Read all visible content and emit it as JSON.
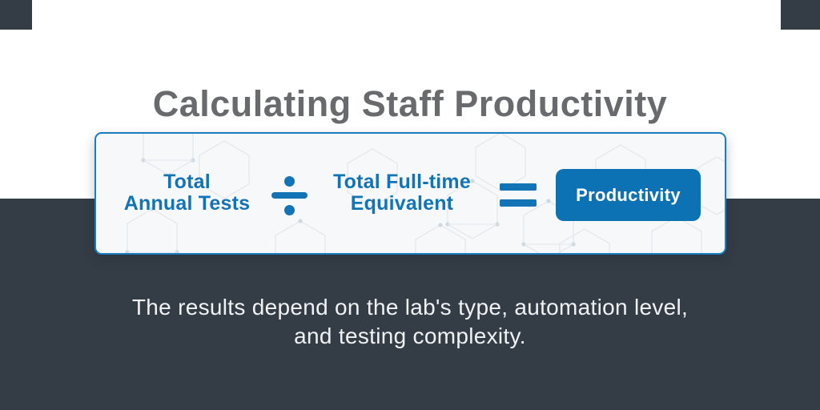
{
  "page": {
    "title": "Calculating Staff Productivity",
    "subtitle_line1": "The results depend on the lab's type, automation level,",
    "subtitle_line2": "and testing complexity."
  },
  "formula": {
    "operand1_line1": "Total",
    "operand1_line2": "Annual Tests",
    "operator_divide": "÷",
    "operand2_line1": "Total Full-time",
    "operand2_line2": "Equivalent",
    "operator_equals": "=",
    "result_label": "Productivity"
  },
  "icons": [
    "divide-icon",
    "equals-icon",
    "hexagon-pattern"
  ],
  "colors": {
    "accent_blue_text": "#1273b5",
    "result_badge_blue": "#0d72b3",
    "card_border_blue": "#1a7dc2",
    "card_background": "#f7f8f9",
    "dark_background": "#343c46",
    "title_gray": "#696a6d",
    "subtitle_text": "#f0f2f4"
  }
}
